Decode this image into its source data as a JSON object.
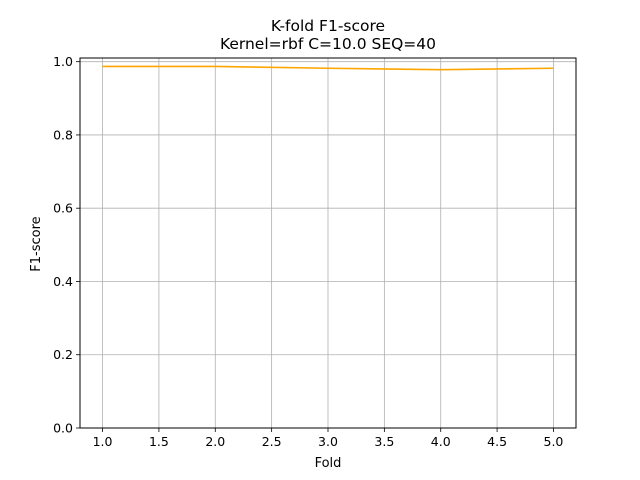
{
  "chart_data": {
    "type": "line",
    "title": "K-fold F1-score",
    "subtitle": "Kernel=rbf C=10.0 SEQ=40",
    "xlabel": "Fold",
    "ylabel": "F1-score",
    "xlim": [
      0.8,
      5.2
    ],
    "ylim": [
      0.0,
      1.01
    ],
    "x_ticks": [
      1.0,
      1.5,
      2.0,
      2.5,
      3.0,
      3.5,
      4.0,
      4.5,
      5.0
    ],
    "x_tick_labels": [
      "1.0",
      "1.5",
      "2.0",
      "2.5",
      "3.0",
      "3.5",
      "4.0",
      "4.5",
      "5.0"
    ],
    "y_ticks": [
      0.0,
      0.2,
      0.4,
      0.6,
      0.8,
      1.0
    ],
    "y_tick_labels": [
      "0.0",
      "0.2",
      "0.4",
      "0.6",
      "0.8",
      "1.0"
    ],
    "grid": true,
    "series": [
      {
        "color": "#ffa500",
        "x": [
          1,
          2,
          3,
          4,
          5
        ],
        "y": [
          0.987,
          0.987,
          0.982,
          0.978,
          0.982
        ]
      }
    ]
  }
}
